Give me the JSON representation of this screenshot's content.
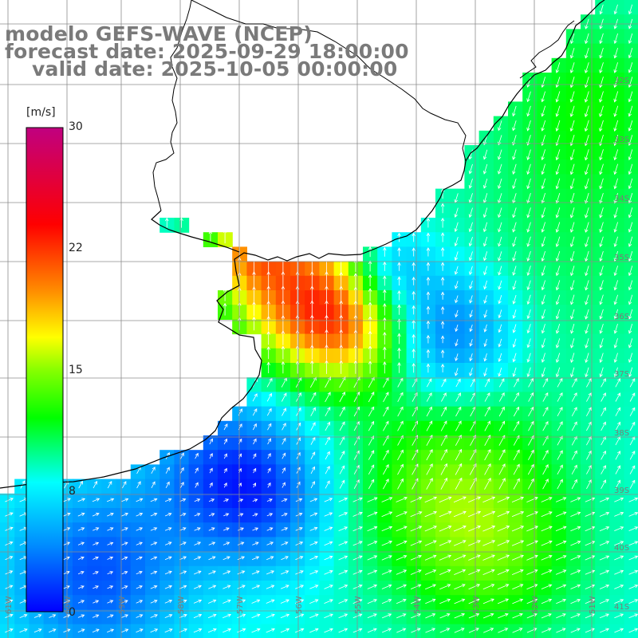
{
  "titles": {
    "line1": "modelo GEFS-WAVE (NCEP)",
    "line2": "forecast date: 2025-09-29 18:00:00",
    "line3": "valid date: 2025-10-05 00:00:00"
  },
  "colorbar": {
    "unit": "[m/s]",
    "ticks": [
      "30",
      "22",
      "15",
      "8",
      "0"
    ],
    "tick_values": [
      30,
      22,
      15,
      8,
      0
    ],
    "stops": [
      {
        "v": 0,
        "color": "#0000ff"
      },
      {
        "v": 4,
        "color": "#0088ff"
      },
      {
        "v": 8,
        "color": "#00ffff"
      },
      {
        "v": 12,
        "color": "#00ff00"
      },
      {
        "v": 15,
        "color": "#88ff00"
      },
      {
        "v": 17,
        "color": "#ffff00"
      },
      {
        "v": 20,
        "color": "#ff8800"
      },
      {
        "v": 24,
        "color": "#ff0000"
      },
      {
        "v": 30,
        "color": "#c00080"
      }
    ]
  },
  "map": {
    "lon_labels": [
      "61W",
      "60W",
      "59W",
      "58W",
      "57W",
      "56W",
      "55W",
      "54W",
      "53W",
      "52W",
      "51W"
    ],
    "lat_labels": [
      "32S",
      "33S",
      "34S",
      "35S",
      "36S",
      "37S",
      "38S",
      "39S",
      "40S",
      "41S"
    ],
    "vector_color": "#ffffff",
    "coast_color": "#000000",
    "grid_color": "#8c8c8c"
  }
}
